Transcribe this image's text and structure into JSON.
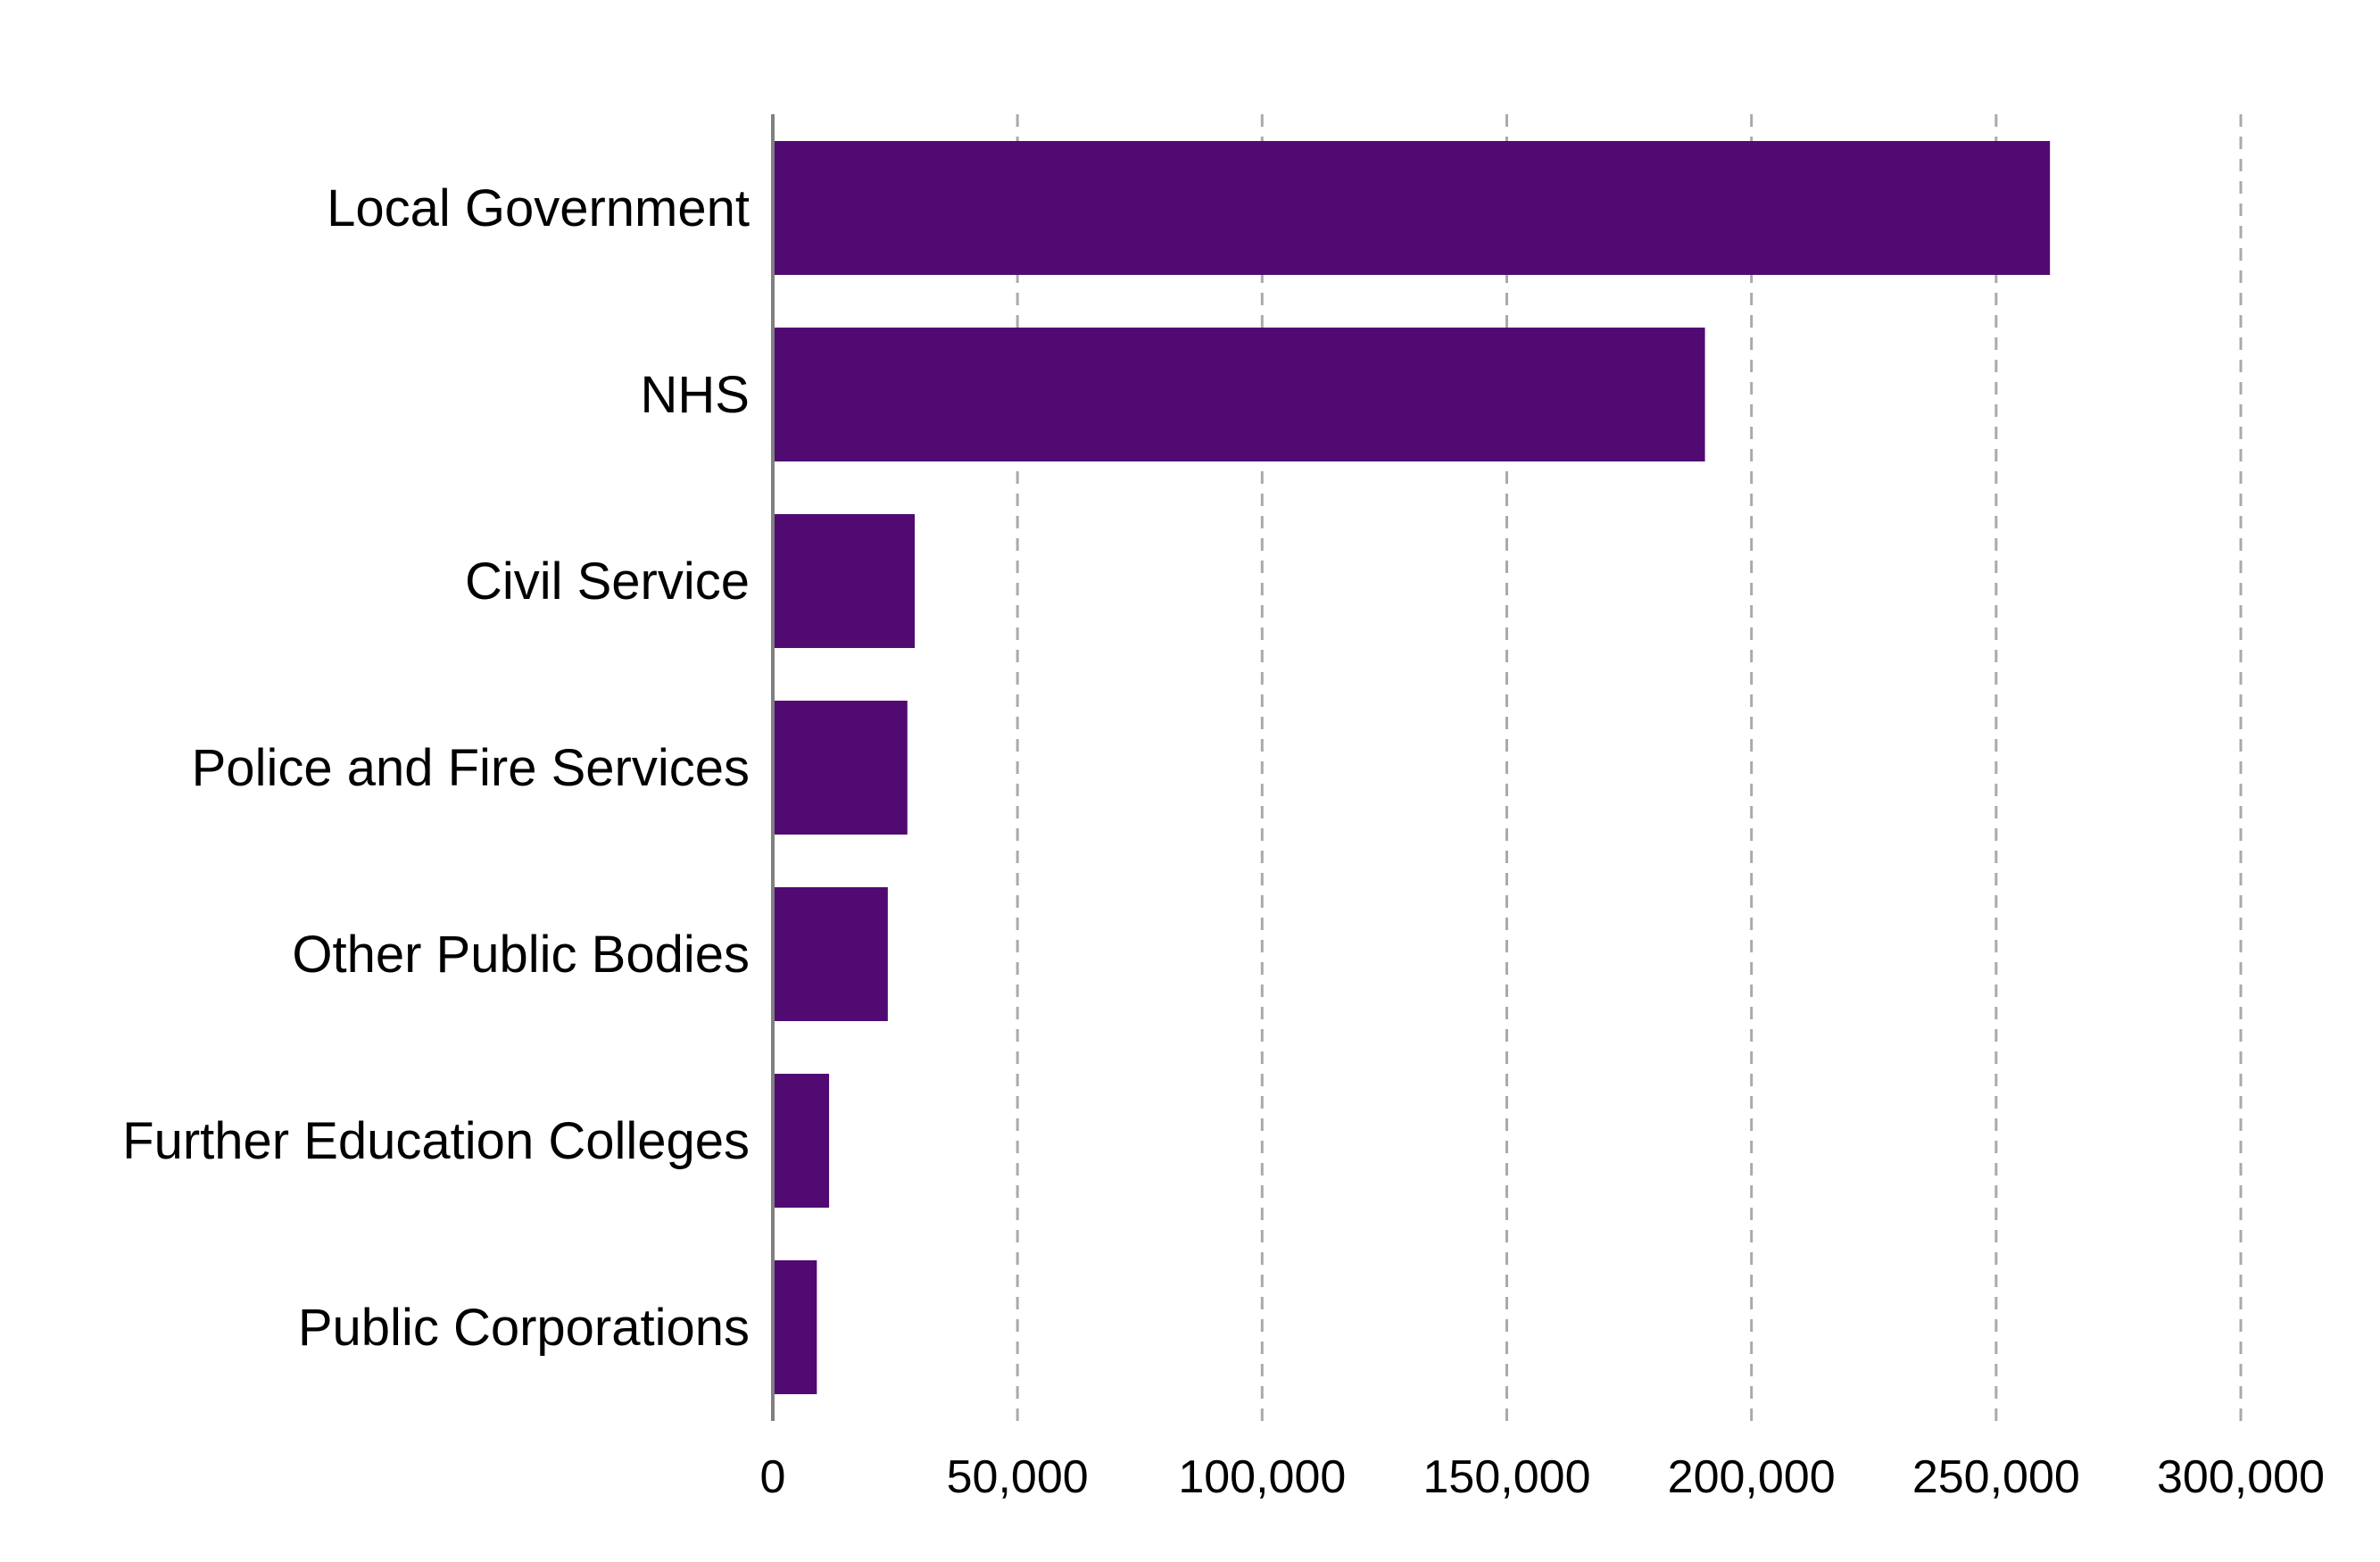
{
  "chart_data": {
    "type": "bar",
    "orientation": "horizontal",
    "categories": [
      "Local Government",
      "NHS",
      "Civil Service",
      "Police and Fire Services",
      "Other Public Bodies",
      "Further Education Colleges",
      "Public Corporations"
    ],
    "values": [
      261000,
      190500,
      29000,
      27500,
      23500,
      11500,
      9000
    ],
    "title": "",
    "xlabel": "",
    "ylabel": "",
    "xlim": [
      0,
      300000
    ],
    "x_ticks": [
      0,
      50000,
      100000,
      150000,
      200000,
      250000,
      300000
    ],
    "x_tick_labels": [
      "0",
      "50,000",
      "100,000",
      "150,000",
      "200,000",
      "250,000",
      "300,000"
    ],
    "grid": "vertical dashed",
    "legend": "none",
    "colors": {
      "bar": "#510A72",
      "grid": "#AAAAAA",
      "axis": "#808080",
      "text": "#000000"
    }
  }
}
